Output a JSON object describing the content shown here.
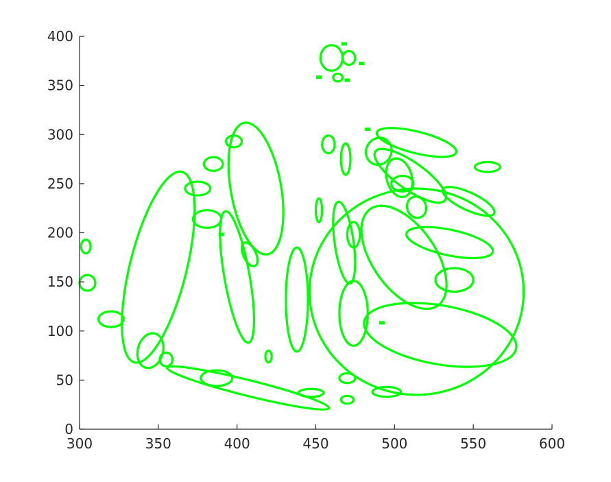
{
  "chart_data": {
    "type": "scatter",
    "title": "",
    "xlabel": "",
    "ylabel": "",
    "xlim": [
      300,
      600
    ],
    "ylim": [
      0,
      400
    ],
    "grid": false,
    "color": "#00ff00",
    "x_ticks": [
      "300",
      "350",
      "400",
      "450",
      "500",
      "550",
      "600"
    ],
    "y_ticks": [
      "0",
      "50",
      "100",
      "150",
      "200",
      "250",
      "300",
      "350",
      "400"
    ],
    "ellipses": [
      {
        "cx": 460,
        "cy": 378,
        "rx": 7,
        "ry": 13,
        "angle": 0
      },
      {
        "cx": 471,
        "cy": 378,
        "rx": 4,
        "ry": 7,
        "angle": 0
      },
      {
        "cx": 464,
        "cy": 358,
        "rx": 3,
        "ry": 4,
        "angle": 0
      },
      {
        "cx": 412,
        "cy": 245,
        "rx": 16,
        "ry": 68,
        "angle": 10
      },
      {
        "cx": 350,
        "cy": 165,
        "rx": 18,
        "ry": 100,
        "angle": -14
      },
      {
        "cx": 400,
        "cy": 155,
        "rx": 8,
        "ry": 68,
        "angle": 10
      },
      {
        "cx": 408,
        "cy": 178,
        "rx": 4,
        "ry": 13,
        "angle": 25
      },
      {
        "cx": 438,
        "cy": 132,
        "rx": 7,
        "ry": 53,
        "angle": 0
      },
      {
        "cx": 514,
        "cy": 140,
        "rx": 68,
        "ry": 105,
        "angle": 0
      },
      {
        "cx": 506,
        "cy": 175,
        "rx": 20,
        "ry": 60,
        "angle": 35
      },
      {
        "cx": 468,
        "cy": 190,
        "rx": 6,
        "ry": 42,
        "angle": 8
      },
      {
        "cx": 529,
        "cy": 96,
        "rx": 49,
        "ry": 30,
        "angle": -10
      },
      {
        "cx": 474,
        "cy": 118,
        "rx": 9,
        "ry": 33,
        "angle": 0
      },
      {
        "cx": 407,
        "cy": 42,
        "rx": 53,
        "ry": 8,
        "angle": -14
      },
      {
        "cx": 535,
        "cy": 190,
        "rx": 28,
        "ry": 13,
        "angle": -12
      },
      {
        "cx": 514,
        "cy": 292,
        "rx": 26,
        "ry": 11,
        "angle": -14
      },
      {
        "cx": 510,
        "cy": 258,
        "rx": 27,
        "ry": 14,
        "angle": -35
      },
      {
        "cx": 490,
        "cy": 283,
        "rx": 8,
        "ry": 14,
        "angle": -30
      },
      {
        "cx": 547,
        "cy": 232,
        "rx": 18,
        "ry": 9,
        "angle": -25
      },
      {
        "cx": 503,
        "cy": 256,
        "rx": 8,
        "ry": 20,
        "angle": 15
      },
      {
        "cx": 505,
        "cy": 250,
        "rx": 7,
        "ry": 8,
        "angle": 0
      },
      {
        "cx": 514,
        "cy": 226,
        "rx": 6,
        "ry": 11,
        "angle": 20
      },
      {
        "cx": 469,
        "cy": 275,
        "rx": 3,
        "ry": 16,
        "angle": 0
      },
      {
        "cx": 458,
        "cy": 290,
        "rx": 4,
        "ry": 9,
        "angle": 0
      },
      {
        "cx": 452,
        "cy": 223,
        "rx": 2,
        "ry": 12,
        "angle": 0
      },
      {
        "cx": 474,
        "cy": 198,
        "rx": 4,
        "ry": 13,
        "angle": 0
      },
      {
        "cx": 538,
        "cy": 152,
        "rx": 12,
        "ry": 12,
        "angle": 0
      },
      {
        "cx": 345,
        "cy": 80,
        "rx": 8,
        "ry": 18,
        "angle": -15
      },
      {
        "cx": 355,
        "cy": 71,
        "rx": 4,
        "ry": 7,
        "angle": 0
      },
      {
        "cx": 420,
        "cy": 74,
        "rx": 2,
        "ry": 6,
        "angle": 0
      },
      {
        "cx": 387,
        "cy": 52,
        "rx": 10,
        "ry": 8,
        "angle": 0
      },
      {
        "cx": 447,
        "cy": 37,
        "rx": 8,
        "ry": 4,
        "angle": 0
      },
      {
        "cx": 470,
        "cy": 52,
        "rx": 5,
        "ry": 5,
        "angle": 0
      },
      {
        "cx": 470,
        "cy": 30,
        "rx": 4,
        "ry": 4,
        "angle": 0
      },
      {
        "cx": 495,
        "cy": 38,
        "rx": 9,
        "ry": 5,
        "angle": 0
      },
      {
        "cx": 320,
        "cy": 112,
        "rx": 8,
        "ry": 8,
        "angle": 0
      },
      {
        "cx": 305,
        "cy": 149,
        "rx": 5,
        "ry": 8,
        "angle": 0
      },
      {
        "cx": 304,
        "cy": 186,
        "rx": 3,
        "ry": 7,
        "angle": 0
      },
      {
        "cx": 381,
        "cy": 214,
        "rx": 9,
        "ry": 9,
        "angle": 0
      },
      {
        "cx": 375,
        "cy": 245,
        "rx": 8,
        "ry": 7,
        "angle": 0
      },
      {
        "cx": 385,
        "cy": 270,
        "rx": 6,
        "ry": 7,
        "angle": 0
      },
      {
        "cx": 398,
        "cy": 293,
        "rx": 5,
        "ry": 6,
        "angle": 0
      },
      {
        "cx": 559,
        "cy": 267,
        "rx": 8,
        "ry": 5,
        "angle": 0
      }
    ],
    "squares": [
      {
        "x": 468,
        "y": 392
      },
      {
        "x": 479,
        "y": 372
      },
      {
        "x": 452,
        "y": 358
      },
      {
        "x": 470,
        "y": 355
      },
      {
        "x": 390,
        "y": 198
      },
      {
        "x": 492,
        "y": 108
      },
      {
        "x": 483,
        "y": 305
      }
    ]
  }
}
